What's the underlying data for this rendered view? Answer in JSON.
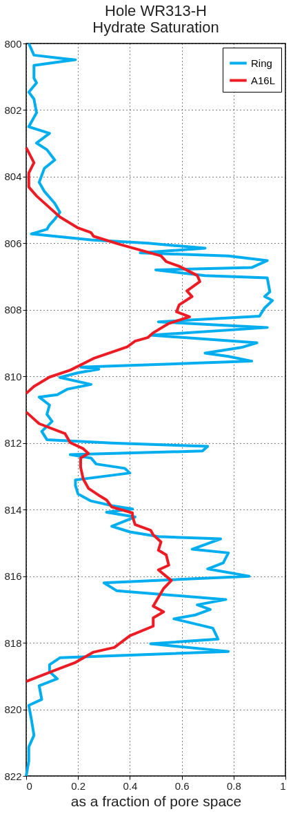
{
  "chart_data": {
    "type": "line",
    "orientation": "horizontal",
    "title": "Hole WR313-H\nHydrate Saturation",
    "xlabel": "as a fraction of pore space",
    "xlim": [
      0,
      1
    ],
    "xticks": [
      0,
      0.2,
      0.4,
      0.6,
      0.8,
      1
    ],
    "ylim": [
      822,
      800
    ],
    "yticks": [
      800,
      802,
      804,
      806,
      808,
      810,
      812,
      814,
      816,
      818,
      820,
      822
    ],
    "grid": true,
    "legend": "top right",
    "line_style": "solid",
    "marker": "none",
    "series": [
      {
        "name": "Ring",
        "color": "#00aeef",
        "x": [
          800.0,
          800.35,
          800.45,
          800.49,
          800.56,
          800.66,
          801.04,
          801.18,
          801.46,
          801.67,
          802.08,
          802.5,
          802.7,
          802.99,
          803.19,
          803.5,
          803.75,
          804.17,
          804.44,
          804.8,
          805.07,
          805.28,
          805.45,
          805.58,
          805.72,
          805.9,
          806.0,
          806.15,
          806.29,
          806.38,
          806.52,
          806.73,
          806.8,
          806.97,
          807.04,
          807.46,
          807.6,
          807.72,
          807.94,
          808.19,
          808.36,
          808.53,
          808.76,
          808.99,
          809.13,
          809.3,
          809.4,
          809.54,
          809.72,
          809.78,
          809.89,
          810.03,
          810.24,
          810.38,
          810.55,
          810.62,
          810.86,
          811.14,
          811.35,
          811.65,
          811.9,
          812.0,
          812.1,
          812.24,
          812.35,
          812.45,
          812.63,
          812.76,
          812.9,
          813.04,
          813.11,
          813.28,
          813.53,
          813.74,
          813.88,
          813.98,
          814.08,
          814.22,
          814.5,
          814.67,
          814.81,
          814.88,
          815.19,
          815.3,
          815.6,
          815.78,
          816.0,
          816.2,
          816.44,
          816.7,
          816.86,
          817.0,
          817.17,
          817.28,
          817.56,
          817.72,
          817.89,
          818.03,
          818.26,
          818.45,
          818.66,
          818.87,
          819.08,
          819.29,
          819.7,
          819.88,
          820.3,
          820.78,
          821.13,
          821.55,
          822.0
        ],
        "values": [
          0.01,
          0.03,
          0.14,
          0.19,
          0.12,
          0.03,
          0.03,
          0.04,
          0.01,
          0.03,
          0.04,
          0.01,
          0.09,
          0.04,
          0.08,
          0.11,
          0.07,
          0.05,
          0.07,
          0.11,
          0.13,
          0.11,
          0.09,
          0.08,
          0.02,
          0.25,
          0.47,
          0.69,
          0.44,
          0.78,
          0.93,
          0.87,
          0.5,
          0.69,
          0.93,
          0.94,
          0.92,
          0.95,
          0.92,
          0.9,
          0.51,
          0.93,
          0.48,
          0.89,
          0.83,
          0.69,
          0.78,
          0.87,
          0.21,
          0.28,
          0.2,
          0.13,
          0.25,
          0.16,
          0.12,
          0.05,
          0.09,
          0.08,
          0.1,
          0.06,
          0.08,
          0.33,
          0.7,
          0.68,
          0.17,
          0.25,
          0.27,
          0.38,
          0.4,
          0.26,
          0.19,
          0.19,
          0.2,
          0.25,
          0.33,
          0.41,
          0.31,
          0.42,
          0.33,
          0.4,
          0.51,
          0.75,
          0.64,
          0.78,
          0.76,
          0.7,
          0.86,
          0.3,
          0.35,
          0.77,
          0.66,
          0.71,
          0.65,
          0.57,
          0.72,
          0.73,
          0.74,
          0.48,
          0.78,
          0.13,
          0.09,
          0.09,
          0.12,
          0.05,
          0.06,
          0.01,
          0.02,
          0.03,
          0.01,
          0.01,
          0.0
        ]
      },
      {
        "name": "A16L",
        "color": "#ed1c24",
        "x": [
          803.13,
          803.58,
          803.89,
          804.31,
          804.58,
          804.86,
          805.21,
          805.54,
          805.68,
          805.79,
          806.03,
          806.38,
          806.55,
          806.69,
          806.97,
          807.15,
          807.43,
          807.6,
          807.85,
          808.06,
          808.21,
          808.41,
          808.69,
          808.83,
          808.94,
          809.11,
          809.46,
          809.81,
          810.02,
          810.3,
          810.51,
          810.8,
          811.07,
          811.42,
          811.72,
          811.99,
          812.17,
          812.31,
          812.45,
          812.73,
          813.08,
          813.36,
          813.57,
          813.71,
          813.92,
          814.1,
          814.2,
          814.45,
          814.62,
          814.76,
          814.97,
          815.22,
          815.36,
          815.67,
          815.81,
          816.13,
          816.37,
          816.9,
          817.07,
          817.25,
          817.5,
          817.79,
          818.14,
          818.28,
          818.59,
          818.77,
          819.16
        ],
        "values": [
          0.0,
          0.03,
          0.01,
          0.01,
          0.04,
          0.08,
          0.13,
          0.2,
          0.25,
          0.26,
          0.36,
          0.52,
          0.54,
          0.59,
          0.66,
          0.67,
          0.62,
          0.64,
          0.59,
          0.58,
          0.63,
          0.55,
          0.49,
          0.47,
          0.42,
          0.39,
          0.26,
          0.17,
          0.09,
          0.03,
          0.0,
          null,
          0.0,
          0.05,
          0.15,
          0.17,
          0.22,
          0.24,
          0.21,
          0.21,
          0.22,
          0.24,
          0.28,
          0.31,
          0.33,
          0.41,
          0.41,
          0.42,
          0.48,
          0.49,
          0.52,
          0.51,
          0.54,
          0.55,
          0.51,
          0.56,
          0.53,
          0.49,
          0.53,
          0.49,
          0.49,
          0.4,
          0.34,
          0.26,
          0.19,
          0.13,
          0.0
        ]
      }
    ]
  }
}
